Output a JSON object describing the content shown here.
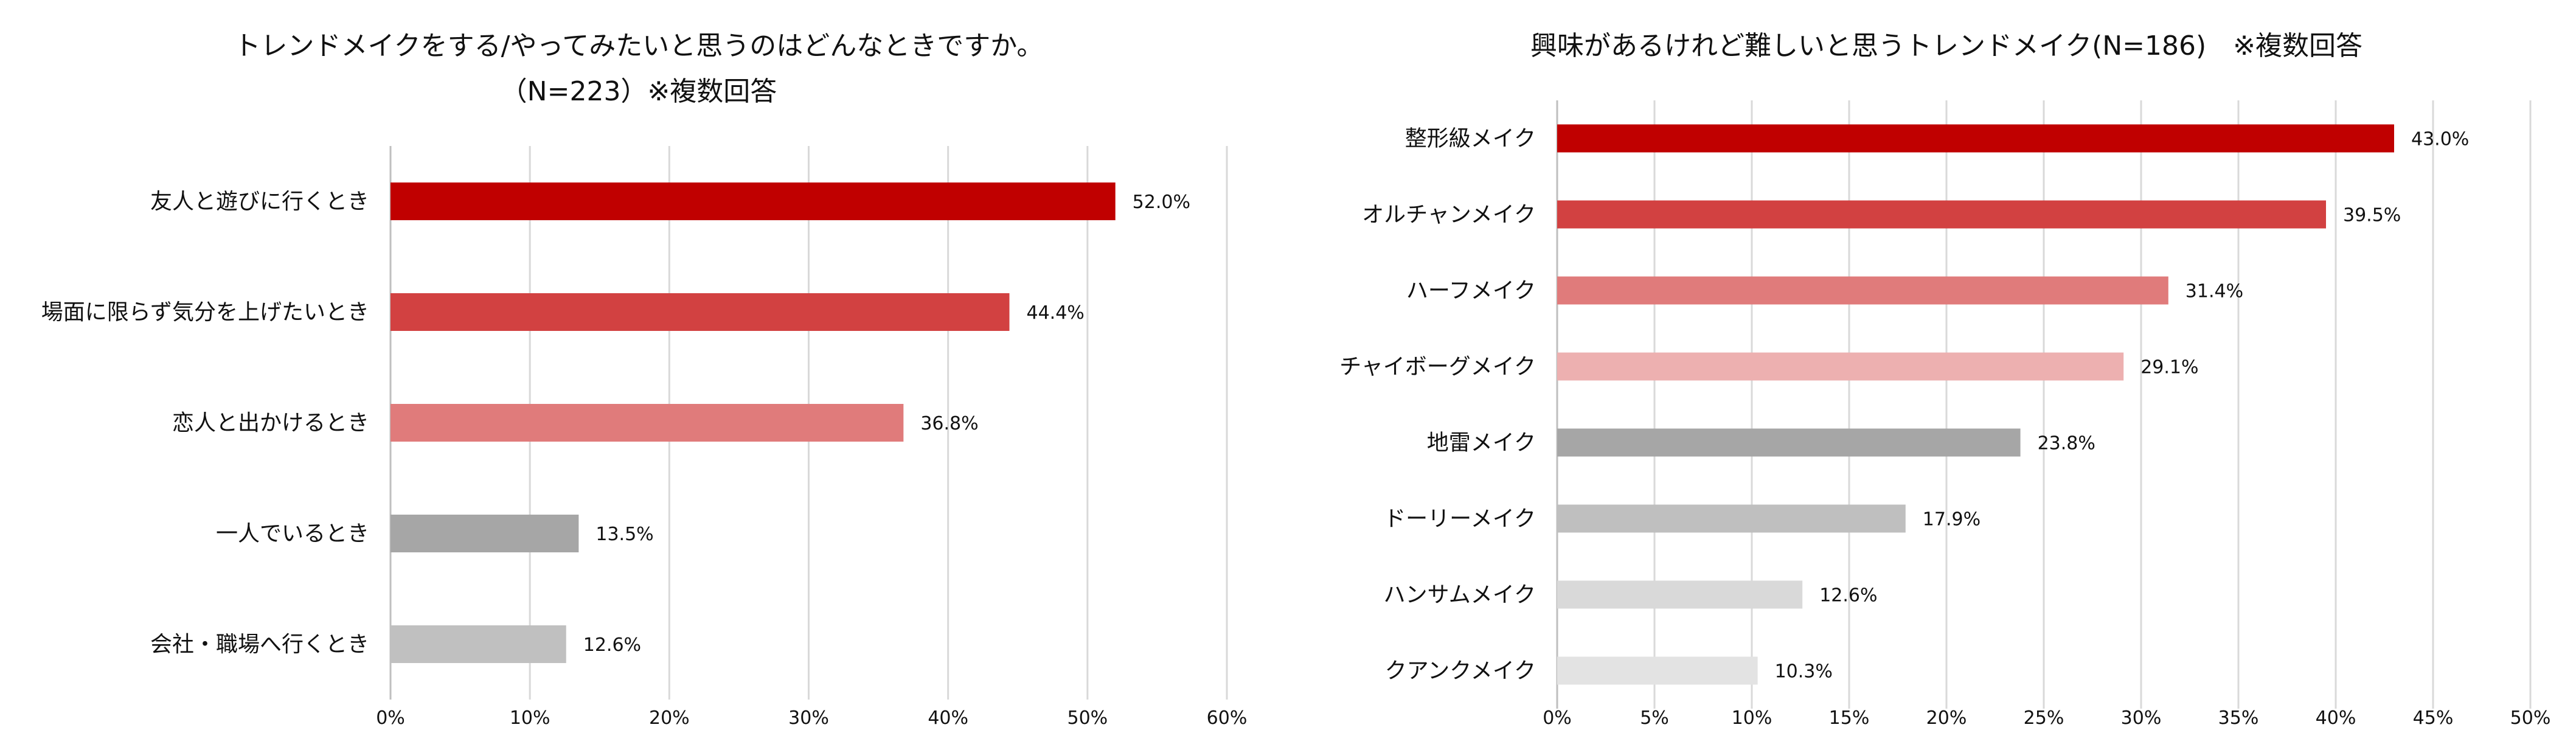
{
  "chart_data": [
    {
      "type": "bar",
      "orientation": "horizontal",
      "title": "トレンドメイクをする/やってみたいと思うのはどんなときですか。",
      "subtitle": "（N=223）※複数回答",
      "categories": [
        "友人と遊びに行くとき",
        "場面に限らず気分を上げたいとき",
        "恋人と出かけるとき",
        "一人でいるとき",
        "会社・職場へ行くとき"
      ],
      "values": [
        52.0,
        44.4,
        36.8,
        13.5,
        12.6
      ],
      "value_labels": [
        "52.0%",
        "44.4%",
        "36.8%",
        "13.5%",
        "12.6%"
      ],
      "colors": [
        "#C00000",
        "#D24141",
        "#E07B7B",
        "#A6A6A6",
        "#C0C0C0"
      ],
      "xlim": [
        0,
        60
      ],
      "xticks": [
        0,
        10,
        20,
        30,
        40,
        50,
        60
      ],
      "xtick_labels": [
        "0%",
        "10%",
        "20%",
        "30%",
        "40%",
        "50%",
        "60%"
      ],
      "grid": "vertical",
      "legend": "none"
    },
    {
      "type": "bar",
      "orientation": "horizontal",
      "title": "興味があるけれど難しいと思うトレンドメイク(N=186)　※複数回答",
      "categories": [
        "整形級メイク",
        "オルチャンメイク",
        "ハーフメイク",
        "チャイボーグメイク",
        "地雷メイク",
        "ドーリーメイク",
        "ハンサムメイク",
        "クアンクメイク"
      ],
      "values": [
        43.0,
        39.5,
        31.4,
        29.1,
        23.8,
        17.9,
        12.6,
        10.3
      ],
      "value_labels": [
        "43.0%",
        "39.5%",
        "31.4%",
        "29.1%",
        "23.8%",
        "17.9%",
        "12.6%",
        "10.3%"
      ],
      "colors": [
        "#C00000",
        "#D24141",
        "#E07B7B",
        "#EDB0B0",
        "#A6A6A6",
        "#BFBFBF",
        "#D9D9D9",
        "#E3E3E3"
      ],
      "xlim": [
        0,
        50
      ],
      "xticks": [
        0,
        5,
        10,
        15,
        20,
        25,
        30,
        35,
        40,
        45,
        50
      ],
      "xtick_labels": [
        "0%",
        "5%",
        "10%",
        "15%",
        "20%",
        "25%",
        "30%",
        "35%",
        "40%",
        "45%",
        "50%"
      ],
      "grid": "vertical",
      "legend": "none"
    }
  ]
}
